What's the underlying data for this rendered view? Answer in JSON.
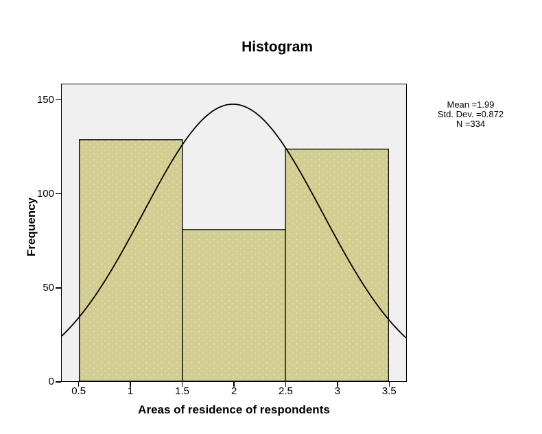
{
  "chart_data": {
    "type": "bar",
    "subtype": "histogram-with-normal-curve",
    "title": "Histogram",
    "xlabel": "Areas of residence of respondents",
    "ylabel": "Frequency",
    "categories": [
      1,
      2,
      3
    ],
    "values": [
      129,
      81,
      124
    ],
    "bin_width": 1,
    "x_ticks": [
      "0.5",
      "1",
      "1.5",
      "2",
      "2.5",
      "3",
      "3.5"
    ],
    "y_ticks": [
      "0",
      "50",
      "100",
      "150"
    ],
    "xlim": [
      0.33,
      3.67
    ],
    "ylim": [
      0,
      158.6
    ],
    "grid": false,
    "legend": "none",
    "normal_curve": {
      "mean": 1.99,
      "std_dev": 0.872,
      "peak_frequency": 148
    },
    "annotations": {
      "mean": "Mean =1.99",
      "std_dev": "Std. Dev. =0.872",
      "n": "N =334"
    },
    "colors": {
      "bar_fill": "#d2cd90",
      "bar_border": "#000000",
      "plot_background": "#f0f0f0",
      "curve": "#000000",
      "page_background": "#ffffff"
    }
  }
}
